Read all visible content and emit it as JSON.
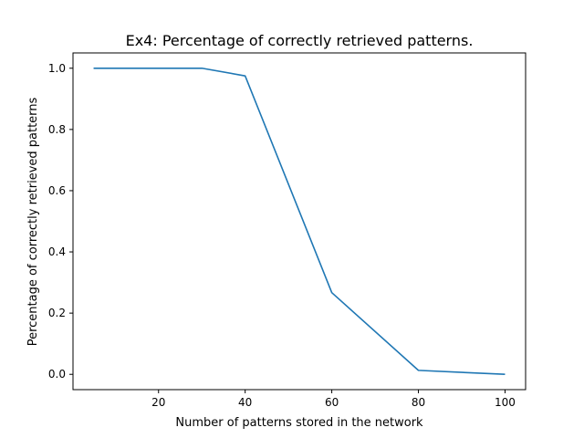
{
  "chart_data": {
    "type": "line",
    "title": "Ex4: Percentage of correctly retrieved patterns.",
    "xlabel": "Number of patterns stored in the network",
    "ylabel": "Percentage of correctly retrieved patterns",
    "xlim": [
      0.25,
      104.75
    ],
    "ylim": [
      -0.05,
      1.05
    ],
    "xticks": [
      20,
      40,
      60,
      80,
      100
    ],
    "xtick_labels": [
      "20",
      "40",
      "60",
      "80",
      "100"
    ],
    "yticks": [
      0.0,
      0.2,
      0.4,
      0.6,
      0.8,
      1.0
    ],
    "ytick_labels": [
      "0.0",
      "0.2",
      "0.4",
      "0.6",
      "0.8",
      "1.0"
    ],
    "grid": false,
    "series": [
      {
        "color": "#1f77b4",
        "x": [
          5,
          10,
          20,
          30,
          40,
          60,
          80,
          100
        ],
        "y": [
          1.0,
          1.0,
          1.0,
          1.0,
          0.975,
          0.267,
          0.013,
          0.0
        ]
      }
    ]
  }
}
